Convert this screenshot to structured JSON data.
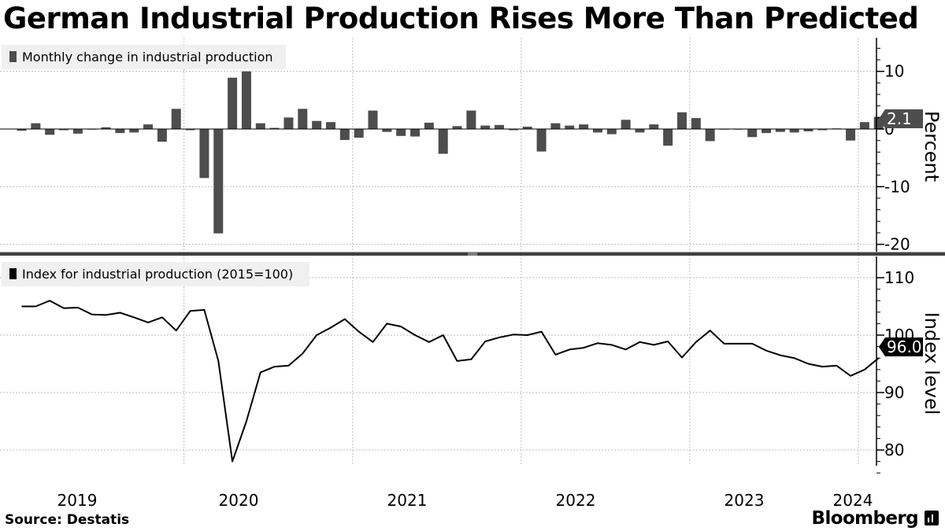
{
  "title": "German Industrial Production Rises More Than Predicted",
  "source": "Source:  Destatis",
  "brand": "Bloomberg",
  "colors": {
    "bar": "#4d4d4d",
    "line": "#000000",
    "grid": "#bdbdbd",
    "legend_bg": "#f0f0f0"
  },
  "chart_data": [
    {
      "type": "bar",
      "legend": "Monthly change in industrial production",
      "ylabel": "Percent",
      "ylim": [
        -22,
        15
      ],
      "yticks": [
        10,
        0,
        -10,
        -20
      ],
      "ytick_labels": [
        "10",
        "0",
        "-10",
        "-20"
      ],
      "start": "2019-01",
      "last_value_label": "2.1",
      "values": [
        -0.3,
        1.0,
        -1.0,
        -0.2,
        -0.8,
        -0.1,
        0.3,
        -0.7,
        -0.6,
        0.8,
        -2.2,
        3.5,
        -0.2,
        -8.5,
        -18.1,
        8.9,
        10.0,
        1.0,
        0.2,
        2.0,
        3.5,
        1.4,
        1.2,
        -1.9,
        -1.5,
        3.2,
        -0.5,
        -1.2,
        -1.3,
        1.1,
        -4.3,
        0.5,
        3.2,
        0.6,
        0.7,
        -0.2,
        0.4,
        -3.9,
        1.0,
        0.6,
        0.8,
        -0.6,
        -0.9,
        1.6,
        -0.6,
        0.8,
        -2.9,
        2.9,
        1.9,
        -2.1,
        -0.1,
        -0.1,
        -1.4,
        -0.7,
        -0.5,
        -0.6,
        -0.4,
        -0.2,
        0.0,
        -2.0,
        1.2,
        2.1
      ]
    },
    {
      "type": "line",
      "legend": "Index for industrial production (2015=100)",
      "ylabel": "Index level",
      "ylim": [
        75,
        111
      ],
      "yticks": [
        110,
        100,
        90,
        80
      ],
      "ytick_labels": [
        "110",
        "100",
        "90",
        "80"
      ],
      "start": "2019-01",
      "last_value_label": "96.0",
      "x_tick_labels": [
        "2019",
        "2020",
        "2021",
        "2022",
        "2023",
        "2024"
      ],
      "values": [
        105.0,
        105.0,
        106.0,
        104.7,
        104.8,
        103.6,
        103.5,
        103.9,
        103.1,
        102.2,
        103.1,
        100.8,
        104.2,
        104.4,
        95.5,
        78.0,
        85.0,
        93.5,
        94.5,
        94.7,
        96.8,
        100.0,
        101.3,
        102.8,
        100.6,
        98.8,
        102.0,
        101.5,
        100.0,
        98.8,
        100.0,
        95.5,
        95.8,
        98.9,
        99.6,
        100.1,
        100.0,
        100.6,
        96.6,
        97.5,
        97.8,
        98.6,
        98.3,
        97.5,
        98.8,
        98.3,
        98.9,
        96.1,
        98.8,
        100.8,
        98.5,
        98.5,
        98.5,
        97.3,
        96.5,
        96.0,
        95.0,
        94.5,
        94.7,
        92.9,
        94.0,
        96.0
      ]
    }
  ]
}
